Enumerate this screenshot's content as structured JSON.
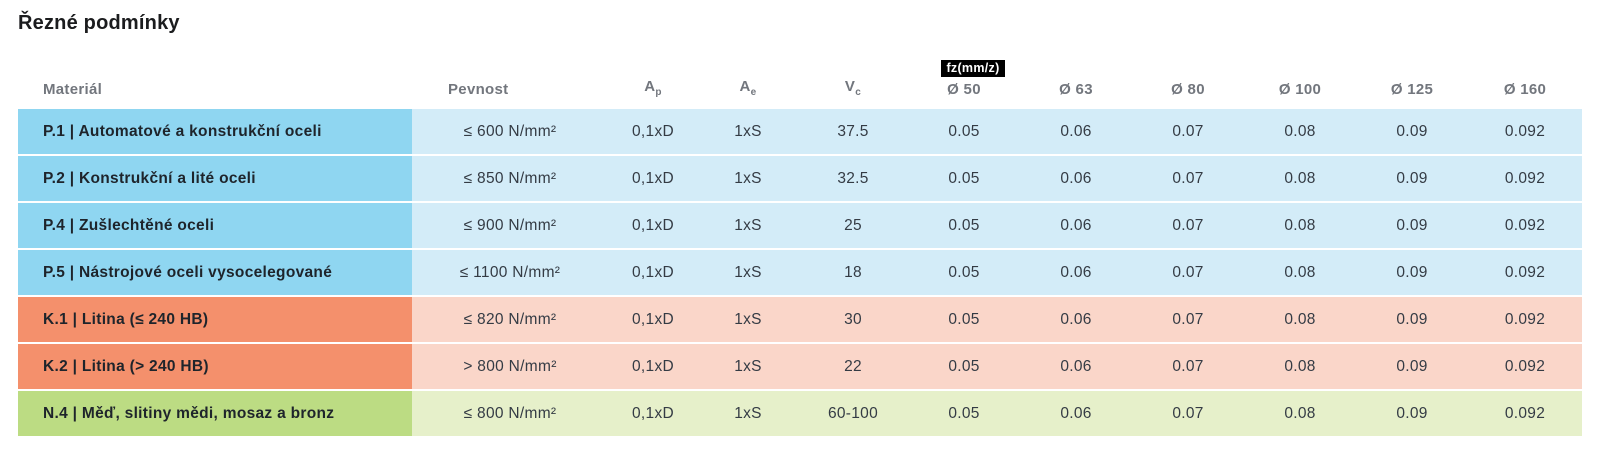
{
  "page": {
    "title": "Řezné podmínky"
  },
  "colors": {
    "badge_bg": "#000000",
    "badge_text": "#ffffff",
    "steel_dark": "#8fd6f1",
    "steel_light": "#d3ecf8",
    "cast_iron_dark": "#f4906c",
    "cast_iron_light": "#fad6c9",
    "nonferrous_dark": "#bcdc83",
    "nonferrous_light": "#e6f0ca"
  },
  "table": {
    "fz_badge": "fz(mm/z)",
    "columns": [
      {
        "key": "material",
        "label": "Materiál"
      },
      {
        "key": "pevnost",
        "label": "Pevnost"
      },
      {
        "key": "ap",
        "label": "A",
        "sub": "p"
      },
      {
        "key": "ae",
        "label": "A",
        "sub": "e"
      },
      {
        "key": "vc",
        "label": "V",
        "sub": "c"
      },
      {
        "key": "d50",
        "label": "Ø 50"
      },
      {
        "key": "d63",
        "label": "Ø 63"
      },
      {
        "key": "d80",
        "label": "Ø 80"
      },
      {
        "key": "d100",
        "label": "Ø 100"
      },
      {
        "key": "d125",
        "label": "Ø 125"
      },
      {
        "key": "d160",
        "label": "Ø 160"
      }
    ],
    "group_colors": {
      "steel": {
        "dark": "#8fd6f1",
        "light": "#d3ecf8"
      },
      "cast_iron": {
        "dark": "#f4906c",
        "light": "#fad6c9"
      },
      "nonferrous": {
        "dark": "#bcdc83",
        "light": "#e6f0ca"
      }
    },
    "rows": [
      {
        "group": "steel",
        "material": "P.1 | Automatové a konstrukční oceli",
        "pevnost": "≤ 600 N/mm²",
        "ap": "0,1xD",
        "ae": "1xS",
        "vc": "37.5",
        "fz": [
          "0.05",
          "0.06",
          "0.07",
          "0.08",
          "0.09",
          "0.092"
        ]
      },
      {
        "group": "steel",
        "material": "P.2 | Konstrukční a lité oceli",
        "pevnost": "≤ 850 N/mm²",
        "ap": "0,1xD",
        "ae": "1xS",
        "vc": "32.5",
        "fz": [
          "0.05",
          "0.06",
          "0.07",
          "0.08",
          "0.09",
          "0.092"
        ]
      },
      {
        "group": "steel",
        "material": "P.4 | Zušlechtěné oceli",
        "pevnost": "≤ 900 N/mm²",
        "ap": "0,1xD",
        "ae": "1xS",
        "vc": "25",
        "fz": [
          "0.05",
          "0.06",
          "0.07",
          "0.08",
          "0.09",
          "0.092"
        ]
      },
      {
        "group": "steel",
        "material": "P.5 | Nástrojové oceli vysocelegované",
        "pevnost": "≤ 1100 N/mm²",
        "ap": "0,1xD",
        "ae": "1xS",
        "vc": "18",
        "fz": [
          "0.05",
          "0.06",
          "0.07",
          "0.08",
          "0.09",
          "0.092"
        ]
      },
      {
        "group": "cast_iron",
        "material": "K.1 | Litina (≤ 240 HB)",
        "pevnost": "≤ 820 N/mm²",
        "ap": "0,1xD",
        "ae": "1xS",
        "vc": "30",
        "fz": [
          "0.05",
          "0.06",
          "0.07",
          "0.08",
          "0.09",
          "0.092"
        ]
      },
      {
        "group": "cast_iron",
        "material": "K.2 | Litina (> 240 HB)",
        "pevnost": "> 800 N/mm²",
        "ap": "0,1xD",
        "ae": "1xS",
        "vc": "22",
        "fz": [
          "0.05",
          "0.06",
          "0.07",
          "0.08",
          "0.09",
          "0.092"
        ]
      },
      {
        "group": "nonferrous",
        "material": "N.4 | Měď, slitiny mědi, mosaz a bronz",
        "pevnost": "≤ 800 N/mm²",
        "ap": "0,1xD",
        "ae": "1xS",
        "vc": "60-100",
        "fz": [
          "0.05",
          "0.06",
          "0.07",
          "0.08",
          "0.09",
          "0.092"
        ]
      }
    ]
  }
}
